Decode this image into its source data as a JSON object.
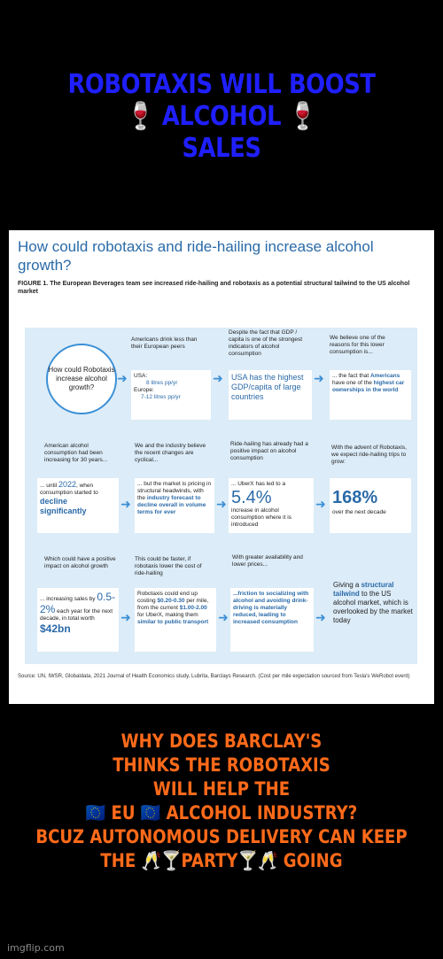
{
  "top_caption": {
    "line1": "ROBOTAXIS WILL BOOST",
    "line2": "🍷 ALCOHOL 🍷",
    "line3": "SALES"
  },
  "infographic": {
    "title": "How could robotaxis and ride-hailing increase alcohol growth?",
    "figure_label": "FIGURE 1.",
    "figure_text": "The European Beverages team see increased ride-hailing and robotaxis as a potential structural tailwind to the US alcohol market",
    "circle": "How could Robotaxis increase alcohol growth?",
    "row1": {
      "c2_text": "Americans drink less than their European peers",
      "c2_usa": "USA:",
      "c2_usa_val": "8 litres pp/yr",
      "c2_eu": "Europe:",
      "c2_eu_val": "7-12 litres pp/yr",
      "c3_text": "Despite the fact that GDP / capita is one of the strongest indicators of alcohol consumption",
      "c3_box": "USA has the highest GDP/capita of large countries",
      "c4_text": "We believe one of the reasons for this lower consumption is...",
      "c4_box_pre": "... the fact that",
      "c4_box_a": "Americans",
      "c4_box_mid": "have one of the",
      "c4_box_b": "highest car ownerships in the world"
    },
    "row2": {
      "c1_text": "American alcohol consumption had been increasing for 30 years...",
      "c1_box_pre": "... until",
      "c1_box_year": "2022",
      "c1_box_mid": ", when consumption started to",
      "c1_box_big": "decline significantly",
      "c2_text": "We and the industry believe the recent changes are cyclical...",
      "c2_box_pre": "... but the market is pricing in structural headwinds, with the",
      "c2_box_blue": "industry forecast to decline overall in volume terms for ever",
      "c3_text": "Ride-hailing has already had a positive impact on alcohol consumption",
      "c3_box_pre": "... UberX has led to a",
      "c3_box_big": "5.4%",
      "c3_box_post": "increase in alcohol consumption where it is introduced",
      "c4_text": "With the advent of Robotaxis, we expect ride-hailing trips to grow:",
      "c4_box_big": "168%",
      "c4_box_post": "over the next decade"
    },
    "row3": {
      "c1_text": "Which could have a positive impact on alcohol growth",
      "c1_box_pre": "... increasing sales by",
      "c1_box_big": "0.5-2%",
      "c1_box_mid": "each year for the next decade, in total worth",
      "c1_box_big2": "$42bn",
      "c2_text": "This could be faster, if robotaxis lower the cost of ride-hailing",
      "c2_box_pre": "Robotaxis could end up costing",
      "c2_box_blue1": "$0.20-0.30",
      "c2_box_mid": "per mile, from the current",
      "c2_box_blue2": "$1.00-2.00",
      "c2_box_mid2": "for UberX, making them",
      "c2_box_blue3": "similar to public transport",
      "c3_text": "With greater availability and lower prices...",
      "c3_box_pre": "...friction to socializing with alcohol and avoiding drink-driving is materially reduced, leading to increased consumption",
      "c4_pre": "Giving a",
      "c4_blue": "structural tailwind",
      "c4_post": "to the US alcohol market, which is overlooked by the market today"
    },
    "source": "Source: UN, IWSR, Globaldata, 2021 Journal of Health Economics study, Lubrita, Barclays Research. (Cost per mile expectation sourced from Tesla's WeRobot event)"
  },
  "bottom_caption": {
    "line1": "WHY DOES BARCLAY'S",
    "line2": "THINKS THE ROBOTAXIS",
    "line3": "WILL HELP THE",
    "line4": "🇪🇺 EU 🇪🇺 ALCOHOL INDUSTRY?",
    "line5": "BCUZ AUTONOMOUS DELIVERY CAN KEEP",
    "line6": "THE 🥂🍸PARTY🍸🥂 GOING"
  },
  "watermark": "imgflip.com",
  "colors": {
    "top_text": "#1f1fff",
    "bottom_text": "#ff6a1a",
    "accent_blue": "#2a6aa8"
  }
}
